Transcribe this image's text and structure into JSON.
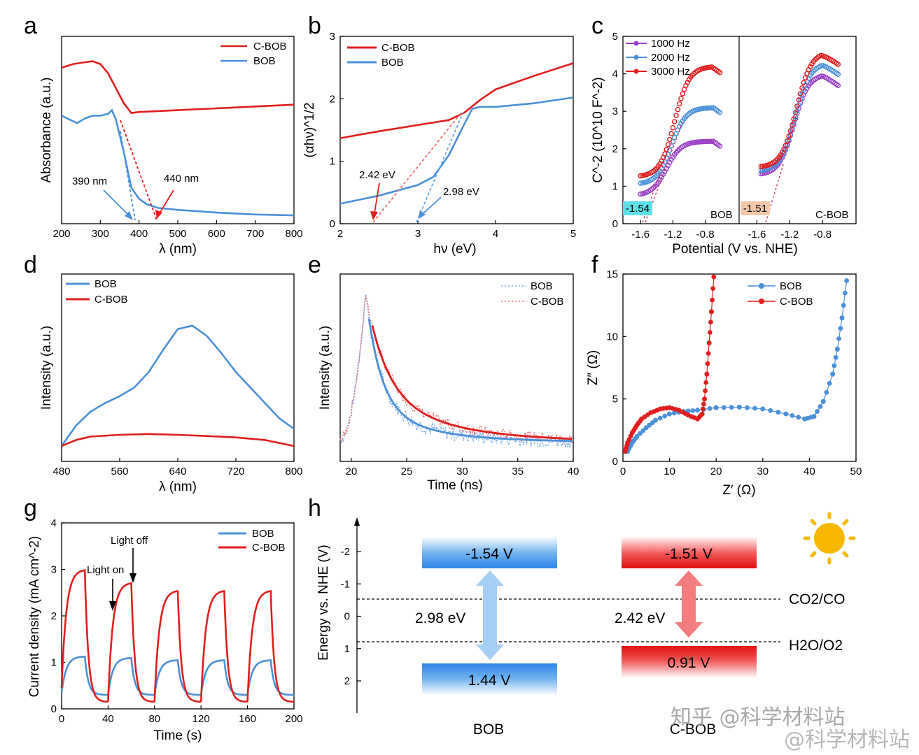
{
  "colors": {
    "red": "#e11d1d",
    "blue": "#4a90d9",
    "purple": "#9b3fc6",
    "cyan_box": "#5ce0e6",
    "peach_box": "#f3c8a8",
    "sun": "#f6b800"
  },
  "panel_labels": [
    "a",
    "b",
    "c",
    "d",
    "e",
    "f",
    "g",
    "h"
  ],
  "chart_data": [
    {
      "id": "a",
      "type": "line",
      "xlabel": "λ (nm)",
      "ylabel": "Absorbance (a.u.)",
      "xlim": [
        200,
        800
      ],
      "xticks": [
        200,
        300,
        400,
        500,
        600,
        700,
        800
      ],
      "legend": [
        "C-BOB",
        "BOB"
      ],
      "series": [
        {
          "name": "C-BOB",
          "x": [
            200,
            230,
            260,
            280,
            300,
            320,
            340,
            360,
            380,
            400,
            450,
            500,
            600,
            700,
            800
          ],
          "y": [
            0.83,
            0.85,
            0.86,
            0.865,
            0.85,
            0.8,
            0.72,
            0.64,
            0.585,
            0.59,
            0.595,
            0.6,
            0.61,
            0.62,
            0.63
          ]
        },
        {
          "name": "BOB",
          "x": [
            200,
            220,
            240,
            260,
            280,
            300,
            320,
            330,
            340,
            360,
            380,
            400,
            420,
            450,
            500,
            600,
            700,
            800
          ],
          "y": [
            0.57,
            0.55,
            0.53,
            0.555,
            0.57,
            0.57,
            0.58,
            0.6,
            0.55,
            0.38,
            0.18,
            0.12,
            0.09,
            0.07,
            0.06,
            0.045,
            0.035,
            0.03
          ]
        }
      ],
      "annotations": [
        "390 nm",
        "440 nm"
      ]
    },
    {
      "id": "b",
      "type": "line",
      "xlabel": "hν (eV)",
      "ylabel": "(αhν)^1/2",
      "xlim": [
        2,
        5
      ],
      "ylim": [
        0,
        3
      ],
      "xticks": [
        2,
        3,
        4,
        5
      ],
      "yticks": [
        0,
        1,
        2,
        3
      ],
      "legend": [
        "C-BOB",
        "BOB"
      ],
      "series": [
        {
          "name": "C-BOB",
          "x": [
            2.0,
            2.5,
            3.0,
            3.4,
            3.6,
            3.8,
            4.0,
            4.5,
            5.0
          ],
          "y": [
            1.37,
            1.48,
            1.58,
            1.66,
            1.78,
            1.98,
            2.15,
            2.37,
            2.57
          ]
        },
        {
          "name": "BOB",
          "x": [
            2.0,
            2.5,
            3.0,
            3.2,
            3.4,
            3.6,
            3.7,
            3.8,
            4.0,
            4.5,
            5.0
          ],
          "y": [
            0.32,
            0.45,
            0.62,
            0.75,
            1.1,
            1.6,
            1.84,
            1.87,
            1.87,
            1.93,
            2.02
          ]
        }
      ],
      "annotations": [
        "2.42 eV",
        "2.98 eV"
      ]
    },
    {
      "id": "c",
      "type": "scatter",
      "xlabel": "Potential (V vs. NHE)",
      "ylabel": "C^-2 (10^10 F^-2)",
      "ylim": [
        0,
        5
      ],
      "yticks": [
        0,
        1,
        2,
        3,
        4,
        5
      ],
      "xticks": [
        "-1.6",
        "-1.2",
        "-0.8"
      ],
      "legend": [
        "1000 Hz",
        "2000 Hz",
        "3000 Hz"
      ],
      "subpanels": [
        {
          "name": "BOB",
          "flatband": "-1.54"
        },
        {
          "name": "C-BOB",
          "flatband": "-1.51"
        }
      ]
    },
    {
      "id": "d",
      "type": "line",
      "xlabel": "λ (nm)",
      "ylabel": "Intensity (a.u.)",
      "xlim": [
        480,
        800
      ],
      "xticks": [
        480,
        560,
        640,
        720,
        800
      ],
      "legend": [
        "BOB",
        "C-BOB"
      ],
      "series": [
        {
          "name": "BOB",
          "x": [
            480,
            500,
            520,
            540,
            560,
            580,
            600,
            620,
            640,
            660,
            680,
            700,
            720,
            740,
            760,
            780,
            800
          ],
          "y": [
            0.0,
            0.12,
            0.2,
            0.25,
            0.29,
            0.34,
            0.43,
            0.56,
            0.68,
            0.7,
            0.64,
            0.54,
            0.43,
            0.34,
            0.25,
            0.16,
            0.1
          ]
        },
        {
          "name": "C-BOB",
          "x": [
            480,
            500,
            520,
            560,
            600,
            640,
            680,
            720,
            760,
            800
          ],
          "y": [
            0.0,
            0.035,
            0.055,
            0.065,
            0.07,
            0.065,
            0.058,
            0.05,
            0.035,
            0.0
          ]
        }
      ]
    },
    {
      "id": "e",
      "type": "line",
      "xlabel": "Time (ns)",
      "ylabel": "Intensity (a.u.)",
      "xlim": [
        19,
        40
      ],
      "xticks": [
        20,
        25,
        30,
        35,
        40
      ],
      "legend": [
        "BOB",
        "C-BOB"
      ]
    },
    {
      "id": "f",
      "type": "scatter",
      "xlabel": "Z′ (Ω)",
      "ylabel": "Z″ (Ω)",
      "xlim": [
        0,
        50
      ],
      "ylim": [
        0,
        15
      ],
      "xticks": [
        0,
        10,
        20,
        30,
        40,
        50
      ],
      "yticks": [
        0,
        5,
        10,
        15
      ],
      "legend": [
        "BOB",
        "C-BOB"
      ],
      "series": [
        {
          "name": "BOB",
          "x": [
            1,
            2,
            3,
            5,
            7,
            10,
            13,
            16,
            20,
            25,
            30,
            35,
            39,
            41,
            43,
            45,
            46,
            47,
            48
          ],
          "y": [
            0.8,
            1.5,
            2.0,
            2.7,
            3.3,
            3.8,
            4.0,
            4.1,
            4.3,
            4.35,
            4.2,
            3.8,
            3.4,
            3.6,
            4.8,
            7,
            9,
            11.5,
            14.5
          ]
        },
        {
          "name": "C-BOB",
          "x": [
            0.5,
            1,
            2,
            3,
            4,
            6,
            8,
            10,
            12,
            14,
            16,
            17,
            17.5,
            18,
            18.5,
            19,
            19.5
          ],
          "y": [
            0.8,
            1.5,
            2.3,
            2.9,
            3.4,
            3.9,
            4.2,
            4.3,
            4.1,
            3.7,
            3.4,
            3.8,
            5.0,
            7.0,
            9.5,
            12.0,
            14.8
          ]
        }
      ]
    },
    {
      "id": "g",
      "type": "line",
      "xlabel": "Time (s)",
      "ylabel": "Current density (mA cm^-2)",
      "xlim": [
        0,
        200
      ],
      "ylim": [
        0,
        4
      ],
      "xticks": [
        0,
        40,
        80,
        120,
        160,
        200
      ],
      "yticks": [
        0,
        1,
        2,
        3,
        4
      ],
      "legend": [
        "BOB",
        "C-BOB"
      ],
      "annotations": [
        "Light off",
        "Light on"
      ]
    },
    {
      "id": "h",
      "type": "diagram",
      "ylabel": "Energy vs. NHE (V)",
      "yticks": [
        "-2",
        "-1",
        "0",
        "1",
        "2"
      ],
      "bands": [
        {
          "material": "BOB",
          "cb": "-1.54 V",
          "vb": "1.44 V",
          "gap": "2.98 eV"
        },
        {
          "material": "C-BOB",
          "cb": "-1.51 V",
          "vb": "0.91 V",
          "gap": "2.42 eV"
        }
      ],
      "levels": [
        "CO2/CO",
        "H2O/O2"
      ]
    }
  ],
  "watermark": [
    "知乎 @科学材料站",
    "@科学材料站"
  ]
}
